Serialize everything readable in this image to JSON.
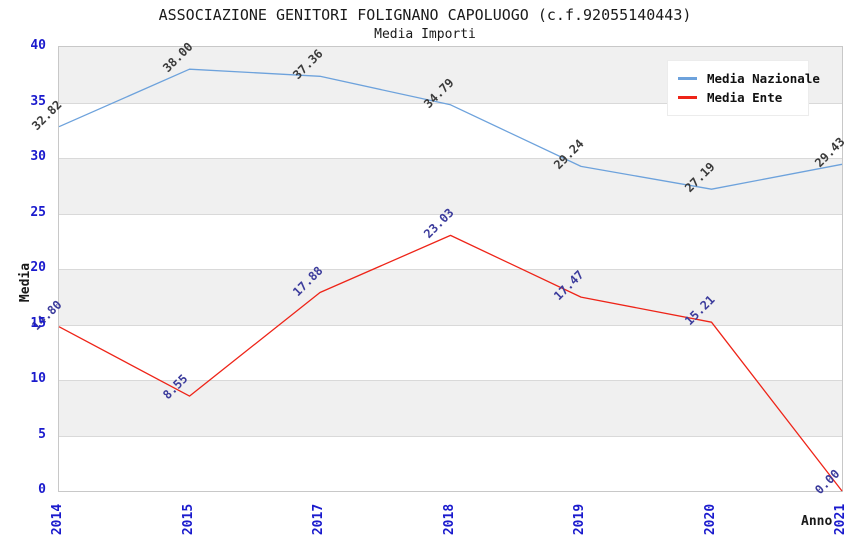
{
  "title": "ASSOCIAZIONE GENITORI FOLIGNANO CAPOLUOGO (c.f.92055140443)",
  "subtitle": "Media Importi",
  "chart_data": {
    "type": "line",
    "categories": [
      "2014",
      "2015",
      "2017",
      "2018",
      "2019",
      "2020",
      "2021"
    ],
    "series": [
      {
        "name": "Media Nazionale",
        "values": [
          32.82,
          38.0,
          37.36,
          34.79,
          29.24,
          27.19,
          29.43
        ],
        "color": "#6da2dc",
        "label_color": "#3b3b3b"
      },
      {
        "name": "Media Ente",
        "values": [
          14.8,
          8.55,
          17.88,
          23.03,
          17.47,
          15.21,
          0.0
        ],
        "color": "#ee2418",
        "label_color": "#3c3c9c"
      }
    ],
    "xlabel": "Anno",
    "ylabel": "Media",
    "ylim": [
      0,
      40
    ],
    "yticks": [
      0,
      5,
      10,
      15,
      20,
      25,
      30,
      35,
      40
    ],
    "value_label_decimals": 2,
    "grid": "horizontal-bands",
    "band_color": "#f0f0f0",
    "gridline_color": "#d9d9d9",
    "tick_color": "#1a1acd",
    "legend_position": "top-right"
  }
}
